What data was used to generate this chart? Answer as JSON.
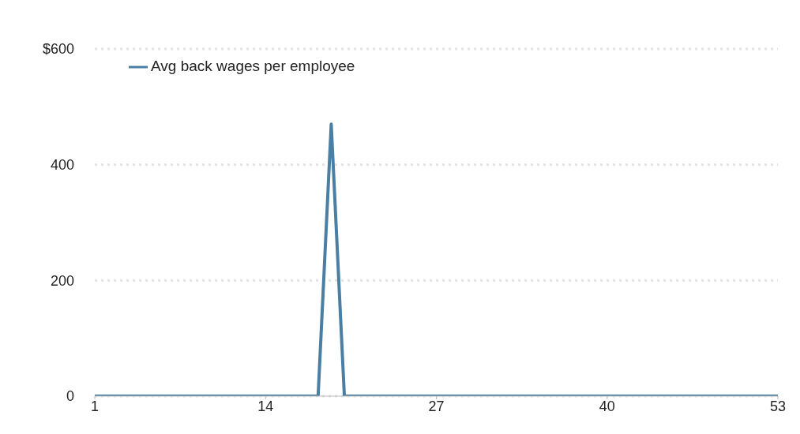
{
  "chart_data": {
    "type": "line",
    "x": [
      1,
      2,
      3,
      4,
      5,
      6,
      7,
      8,
      9,
      10,
      11,
      12,
      13,
      14,
      15,
      16,
      17,
      18,
      19,
      20,
      21,
      22,
      23,
      24,
      25,
      26,
      27,
      28,
      29,
      30,
      31,
      32,
      33,
      34,
      35,
      36,
      37,
      38,
      39,
      40,
      41,
      42,
      43,
      44,
      45,
      46,
      47,
      48,
      49,
      50,
      51,
      52,
      53
    ],
    "series": [
      {
        "name": "Avg back wages per employee",
        "color": "#4a7fa3",
        "values": [
          0,
          0,
          0,
          0,
          0,
          0,
          0,
          0,
          0,
          0,
          0,
          0,
          0,
          0,
          0,
          0,
          0,
          0,
          470,
          0,
          0,
          0,
          0,
          0,
          0,
          0,
          0,
          0,
          0,
          0,
          0,
          0,
          0,
          0,
          0,
          0,
          0,
          0,
          0,
          0,
          0,
          0,
          0,
          0,
          0,
          0,
          0,
          0,
          0,
          0,
          0,
          0,
          0
        ]
      }
    ],
    "xlim": [
      1,
      53
    ],
    "xticks": [
      1,
      14,
      27,
      40,
      53
    ],
    "ylim": [
      0,
      600
    ],
    "yticks": [
      0,
      200,
      400,
      {
        "value": 600,
        "label": "$600"
      }
    ],
    "grid": "y",
    "legend": "top left",
    "line_style": "solid"
  }
}
